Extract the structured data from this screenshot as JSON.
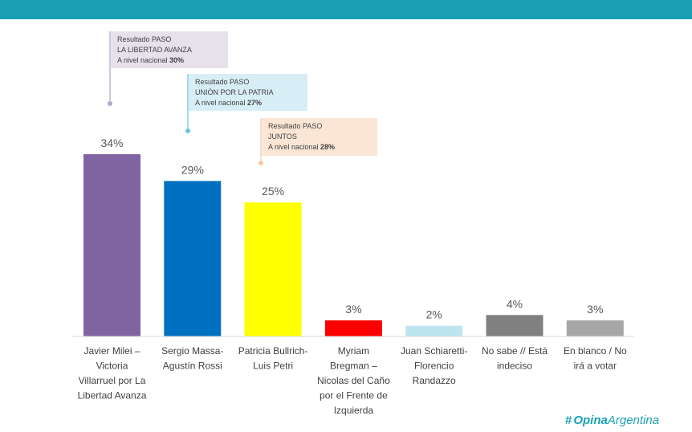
{
  "brand": {
    "name_bold": "Opina",
    "name_rest": "Argentina",
    "accent": "#1aa0b4"
  },
  "callouts": [
    {
      "line1": "Resultado PASO",
      "line2": "LA LIBERTAD AVANZA",
      "line3_prefix": "A nivel nacional ",
      "line3_value": "30%",
      "color": "#e6e1eb",
      "dot_color": "#b3a6c6"
    },
    {
      "line1": "Resultado PASO",
      "line2": "UNIÓN POR LA PATRIA",
      "line3_prefix": "A nivel nacional ",
      "line3_value": "27%",
      "color": "#d8eef6",
      "dot_color": "#6cc3dc"
    },
    {
      "line1": "Resultado PASO",
      "line2": "JUNTOS",
      "line3_prefix": "A nivel nacional ",
      "line3_value": "28%",
      "color": "#fbe6d6",
      "dot_color": "#f3c9a6"
    }
  ],
  "chart_data": {
    "type": "bar",
    "categories": [
      [
        "Javier Milei –",
        "Victoria",
        "Villarruel por La",
        "Libertad Avanza"
      ],
      [
        "Sergio Massa-",
        "Agustín Rossi"
      ],
      [
        "Patricia Bullrich-",
        "Luis Petri"
      ],
      [
        "Myriam",
        "Bregman –",
        "Nicolas del Caño",
        "por el Frente de",
        "Izquierda"
      ],
      [
        "Juan Schiaretti-",
        "Florencio",
        "Randazzo"
      ],
      [
        "No sabe // Está",
        "indeciso"
      ],
      [
        "En blanco / No",
        "irá a votar"
      ]
    ],
    "values": [
      34,
      29,
      25,
      3,
      2,
      4,
      3
    ],
    "value_labels": [
      "34%",
      "29%",
      "25%",
      "3%",
      "2%",
      "4%",
      "3%"
    ],
    "colors": [
      "#8064a2",
      "#0070c0",
      "#ffff00",
      "#ff0000",
      "#bde5f0",
      "#808080",
      "#a6a6a6"
    ],
    "title": "",
    "ylim": [
      0,
      40
    ],
    "grid": false
  }
}
